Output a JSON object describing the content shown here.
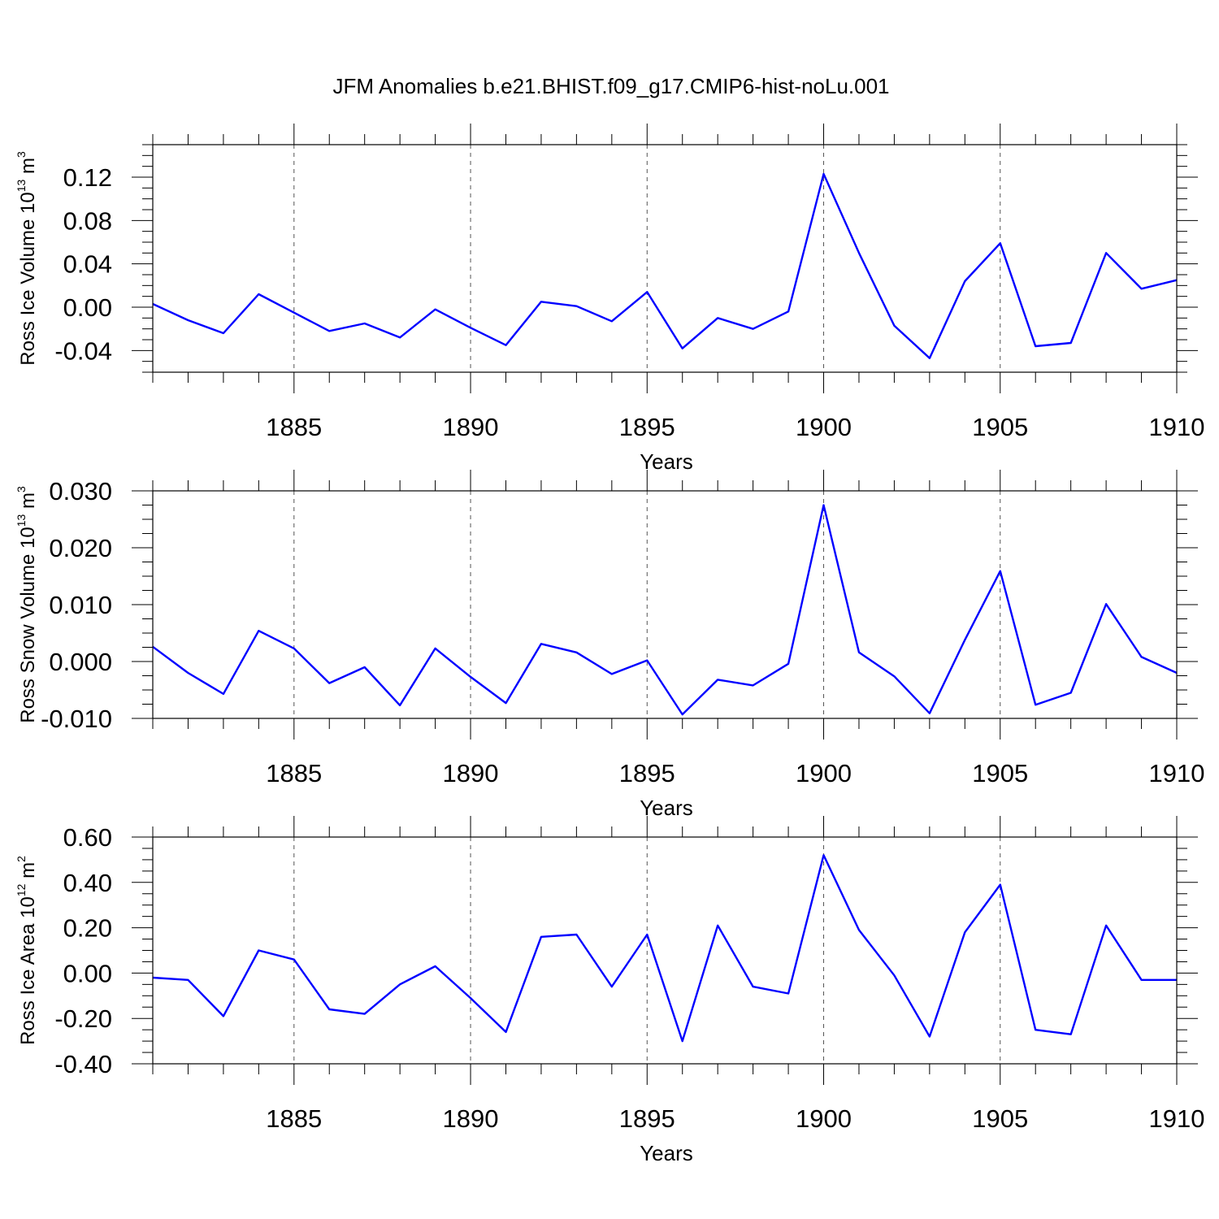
{
  "chart_data": {
    "title": "JFM Anomalies b.e21.BHIST.f09_g17.CMIP6-hist-noLu.001",
    "type": "line",
    "line_color": "#0000ff",
    "x": [
      1881,
      1882,
      1883,
      1884,
      1885,
      1886,
      1887,
      1888,
      1889,
      1890,
      1891,
      1892,
      1893,
      1894,
      1895,
      1896,
      1897,
      1898,
      1899,
      1900,
      1901,
      1902,
      1903,
      1904,
      1905,
      1906,
      1907,
      1908,
      1909,
      1910
    ],
    "xlim": [
      1881,
      1910
    ],
    "xticks": [
      1885,
      1890,
      1895,
      1900,
      1905,
      1910
    ],
    "xticklabels": [
      "1885",
      "1890",
      "1895",
      "1900",
      "1905",
      "1910"
    ],
    "xlabel": "Years",
    "grid": "dashed vertical lines at labeled years",
    "panels": [
      {
        "ylabel_main": "Ross Ice Volume 10",
        "ylabel_exp": "13",
        "ylabel_unit": " m",
        "ylabel_unit_exp": "3",
        "ylim": [
          -0.06,
          0.15
        ],
        "yticks": [
          -0.04,
          0.0,
          0.04,
          0.08,
          0.12
        ],
        "yticklabels": [
          "-0.04",
          "0.00",
          "0.04",
          "0.08",
          "0.12"
        ],
        "yminor_step": 0.01,
        "values": [
          0.003,
          -0.012,
          -0.024,
          0.012,
          -0.005,
          -0.022,
          -0.015,
          -0.028,
          -0.002,
          -0.019,
          -0.035,
          0.005,
          0.001,
          -0.013,
          0.014,
          -0.038,
          -0.01,
          -0.02,
          -0.004,
          0.123,
          0.05,
          -0.017,
          -0.047,
          0.024,
          0.059,
          -0.036,
          -0.033,
          0.05,
          0.017,
          0.025
        ]
      },
      {
        "ylabel_main": "Ross Snow Volume 10",
        "ylabel_exp": "13",
        "ylabel_unit": " m",
        "ylabel_unit_exp": "3",
        "ylim": [
          -0.01,
          0.03
        ],
        "yticks": [
          -0.01,
          0.0,
          0.01,
          0.02,
          0.03
        ],
        "yticklabels": [
          "-0.010",
          "0.000",
          "0.010",
          "0.020",
          "0.030"
        ],
        "yminor_step": 0.0025,
        "values": [
          0.0026,
          -0.002,
          -0.0057,
          0.0054,
          0.0023,
          -0.0038,
          -0.001,
          -0.0077,
          0.0023,
          -0.0027,
          -0.0073,
          0.0031,
          0.0016,
          -0.0022,
          0.0002,
          -0.0093,
          -0.0032,
          -0.0042,
          -0.0004,
          0.0275,
          0.0016,
          -0.0026,
          -0.0091,
          0.0038,
          0.0159,
          -0.0076,
          -0.0055,
          0.0101,
          0.0008,
          -0.002
        ]
      },
      {
        "ylabel_main": "Ross Ice Area 10",
        "ylabel_exp": "12",
        "ylabel_unit": " m",
        "ylabel_unit_exp": "2",
        "ylim": [
          -0.4,
          0.6
        ],
        "yticks": [
          -0.4,
          -0.2,
          0.0,
          0.2,
          0.4,
          0.6
        ],
        "yticklabels": [
          "-0.40",
          "-0.20",
          "0.00",
          "0.20",
          "0.40",
          "0.60"
        ],
        "yminor_step": 0.05,
        "values": [
          -0.02,
          -0.03,
          -0.19,
          0.1,
          0.06,
          -0.16,
          -0.18,
          -0.05,
          0.03,
          -0.11,
          -0.26,
          0.16,
          0.17,
          -0.06,
          0.17,
          -0.3,
          0.21,
          -0.06,
          -0.09,
          0.52,
          0.19,
          -0.01,
          -0.28,
          0.18,
          0.39,
          -0.25,
          -0.27,
          0.21,
          -0.03,
          -0.03
        ]
      }
    ]
  }
}
